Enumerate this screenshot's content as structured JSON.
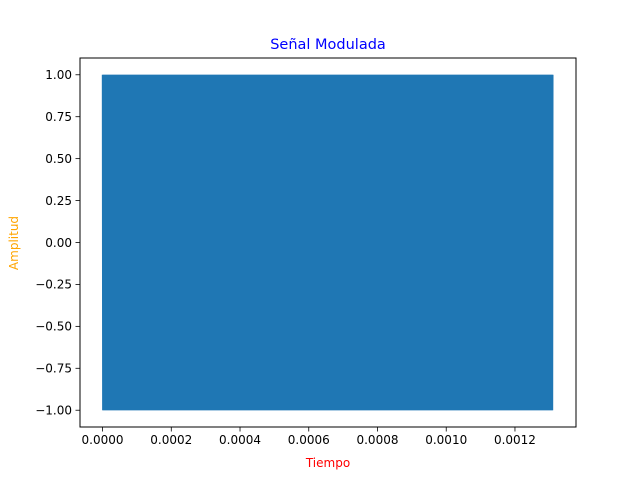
{
  "chart_data": {
    "type": "line",
    "title": "Señal Modulada",
    "xlabel": "Tiempo",
    "ylabel": "Amplitud",
    "xlim": [
      -6.56e-05,
      0.0013776
    ],
    "ylim": [
      -1.1,
      1.1
    ],
    "x_ticks": [
      "0.0000",
      "0.0002",
      "0.0004",
      "0.0006",
      "0.0008",
      "0.0010",
      "0.0012"
    ],
    "x_tick_values": [
      0,
      0.0002,
      0.0004,
      0.0006,
      0.0008,
      0.001,
      0.0012
    ],
    "y_ticks": [
      "−1.00",
      "−0.75",
      "−0.50",
      "−0.25",
      "0.00",
      "0.25",
      "0.50",
      "0.75",
      "1.00"
    ],
    "y_tick_values": [
      -1.0,
      -0.75,
      -0.5,
      -0.25,
      0.0,
      0.25,
      0.5,
      0.75,
      1.0
    ],
    "x_range": [
      0,
      0.00131
    ],
    "amplitude_range": [
      -1.0,
      1.0
    ],
    "grid": false,
    "legend": false,
    "colors": {
      "series": "#1f77b4",
      "title": "#0000ff",
      "xlabel": "#ff0000",
      "ylabel": "#ffa500",
      "axes": "#000000"
    }
  }
}
